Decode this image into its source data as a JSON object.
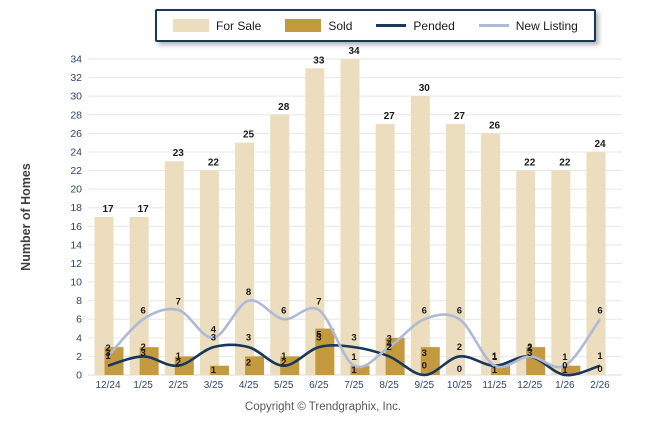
{
  "chart_data": {
    "type": "bar",
    "subtype": "combo-bar-line",
    "categories": [
      "12/24",
      "1/25",
      "2/25",
      "3/25",
      "4/25",
      "5/25",
      "6/25",
      "7/25",
      "8/25",
      "9/25",
      "10/25",
      "11/25",
      "12/25",
      "1/26",
      "2/26"
    ],
    "series": [
      {
        "name": "For Sale",
        "type": "bar",
        "color": "#EBDDBE",
        "values": [
          17,
          17,
          23,
          22,
          25,
          28,
          33,
          34,
          27,
          30,
          27,
          26,
          22,
          22,
          24
        ]
      },
      {
        "name": "Sold",
        "type": "bar",
        "color": "#C39A3D",
        "values": [
          3,
          3,
          2,
          1,
          2,
          2,
          5,
          1,
          4,
          3,
          0,
          1,
          3,
          1,
          0
        ]
      },
      {
        "name": "Pended",
        "type": "line",
        "color": "#17375D",
        "values": [
          1,
          2,
          1,
          3,
          3,
          1,
          3,
          3,
          2,
          0,
          2,
          1,
          2,
          0,
          1
        ]
      },
      {
        "name": "New Listing",
        "type": "line",
        "color": "#AEBAD6",
        "values": [
          2,
          6,
          7,
          4,
          8,
          6,
          7,
          1,
          3,
          6,
          6,
          1,
          2,
          1,
          6
        ]
      }
    ],
    "title": "",
    "xlabel": "",
    "ylabel": "Number of Homes",
    "ylim": [
      0,
      34
    ],
    "ytick_step": 2,
    "grid": true,
    "legend_position": "top"
  },
  "styles": {
    "gridline_color": "#E6E6E6",
    "zeroline_color": "#D8D8D8",
    "axis_text_color": "#2F4470",
    "value_label_color": "#1a1a1a",
    "ylabel_color": "#3F3F3F"
  },
  "footer": {
    "copyright": "Copyright © Trendgraphix, Inc."
  }
}
